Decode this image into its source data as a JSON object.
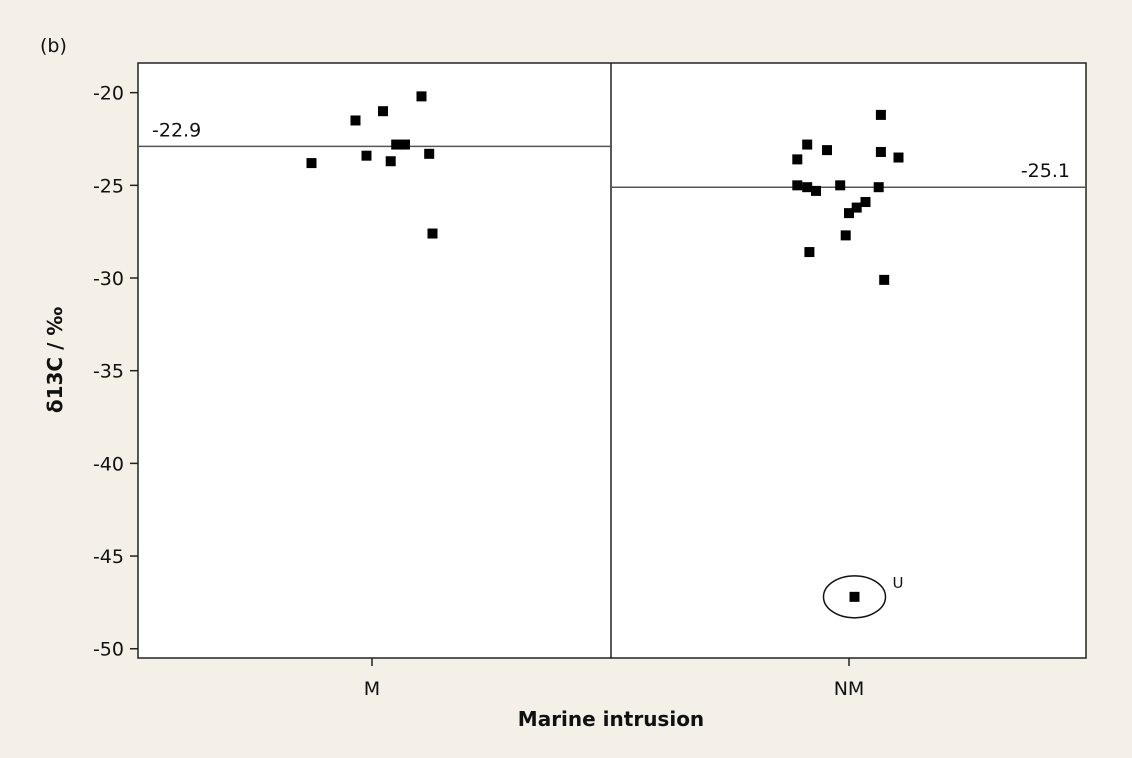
{
  "chart_data": {
    "type": "scatter",
    "panel_label": "(b)",
    "xlabel": "Marine intrusion",
    "ylabel": "δ13C / ‰",
    "categories": [
      "M",
      "NM"
    ],
    "ylim": [
      -50.5,
      -18.4
    ],
    "yticks": [
      -20,
      -25,
      -30,
      -35,
      -40,
      -45,
      -50
    ],
    "ytick_labels": [
      "-20",
      "-25",
      "-30",
      "-35",
      "-40",
      "-45",
      "-50"
    ],
    "grid": false,
    "legend": "none",
    "marker_color": "#000000",
    "background_color": "#f4efe7",
    "series": [
      {
        "category": "M",
        "mean": -22.9,
        "mean_label": "-22.9",
        "points": [
          {
            "offset": -0.55,
            "y": -23.8
          },
          {
            "offset": -0.15,
            "y": -21.5
          },
          {
            "offset": -0.05,
            "y": -23.4
          },
          {
            "offset": 0.1,
            "y": -21.0
          },
          {
            "offset": 0.17,
            "y": -23.7
          },
          {
            "offset": 0.22,
            "y": -22.8
          },
          {
            "offset": 0.3,
            "y": -22.8
          },
          {
            "offset": 0.45,
            "y": -20.2
          },
          {
            "offset": 0.52,
            "y": -23.3
          },
          {
            "offset": 0.55,
            "y": -27.6
          }
        ]
      },
      {
        "category": "NM",
        "mean": -25.1,
        "mean_label": "-25.1",
        "points": [
          {
            "offset": -0.47,
            "y": -23.6
          },
          {
            "offset": -0.47,
            "y": -25.0
          },
          {
            "offset": -0.38,
            "y": -22.8
          },
          {
            "offset": -0.38,
            "y": -25.1
          },
          {
            "offset": -0.36,
            "y": -28.6
          },
          {
            "offset": -0.3,
            "y": -25.3
          },
          {
            "offset": -0.2,
            "y": -23.1
          },
          {
            "offset": -0.08,
            "y": -25.0
          },
          {
            "offset": -0.03,
            "y": -27.7
          },
          {
            "offset": 0.0,
            "y": -26.5
          },
          {
            "offset": 0.07,
            "y": -26.2
          },
          {
            "offset": 0.15,
            "y": -25.9
          },
          {
            "offset": 0.27,
            "y": -25.1
          },
          {
            "offset": 0.29,
            "y": -21.2
          },
          {
            "offset": 0.29,
            "y": -23.2
          },
          {
            "offset": 0.32,
            "y": -30.1
          },
          {
            "offset": 0.45,
            "y": -23.5
          },
          {
            "offset": 0.05,
            "y": -47.2,
            "outlier": true,
            "label": "U"
          }
        ]
      }
    ]
  }
}
